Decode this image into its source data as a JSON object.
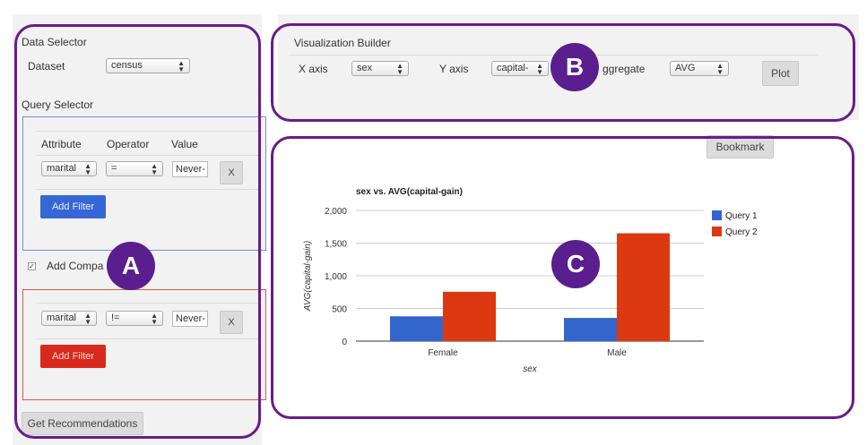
{
  "data_selector": {
    "title": "Data Selector",
    "dataset_label": "Dataset",
    "dataset_value": "census"
  },
  "query_selector": {
    "title": "Query Selector",
    "headers": [
      "Attribute",
      "Operator",
      "Value"
    ],
    "query1": {
      "attribute": "marital",
      "operator": "=",
      "value": "Never-",
      "remove_label": "X",
      "add_filter_label": "Add Filter"
    },
    "compare_label": "Add Compa",
    "query2": {
      "attribute": "marital",
      "operator": "!=",
      "value": "Never-",
      "remove_label": "X",
      "add_filter_label": "Add Filter"
    },
    "get_recommendations_label": "Get Recommendations"
  },
  "viz_builder": {
    "title": "Visualization Builder",
    "x_axis_label": "X axis",
    "x_axis_value": "sex",
    "y_axis_label": "Y axis",
    "y_axis_value": "capital-",
    "aggregate_label": "ggregate",
    "aggregate_value": "AVG",
    "plot_label": "Plot"
  },
  "bookmark_label": "Bookmark",
  "badges": {
    "a": "A",
    "b": "B",
    "c": "C"
  },
  "colors": {
    "query1": "#3366cc",
    "query2": "#dc3912",
    "highlight": "#6a1b8a"
  },
  "chart_data": {
    "type": "bar",
    "title": "sex vs. AVG(capital-gain)",
    "xlabel": "sex",
    "ylabel": "AVG(capital-gain)",
    "categories": [
      "Female",
      "Male"
    ],
    "series": [
      {
        "name": "Query 1",
        "values": [
          380,
          355
        ]
      },
      {
        "name": "Query 2",
        "values": [
          755,
          1650
        ]
      }
    ],
    "ylim": [
      0,
      2000
    ],
    "yticks": [
      0,
      500,
      1000,
      1500,
      2000
    ],
    "ytick_labels": [
      "0",
      "500",
      "1,000",
      "1,500",
      "2,000"
    ],
    "grid": true,
    "legend": "right"
  }
}
